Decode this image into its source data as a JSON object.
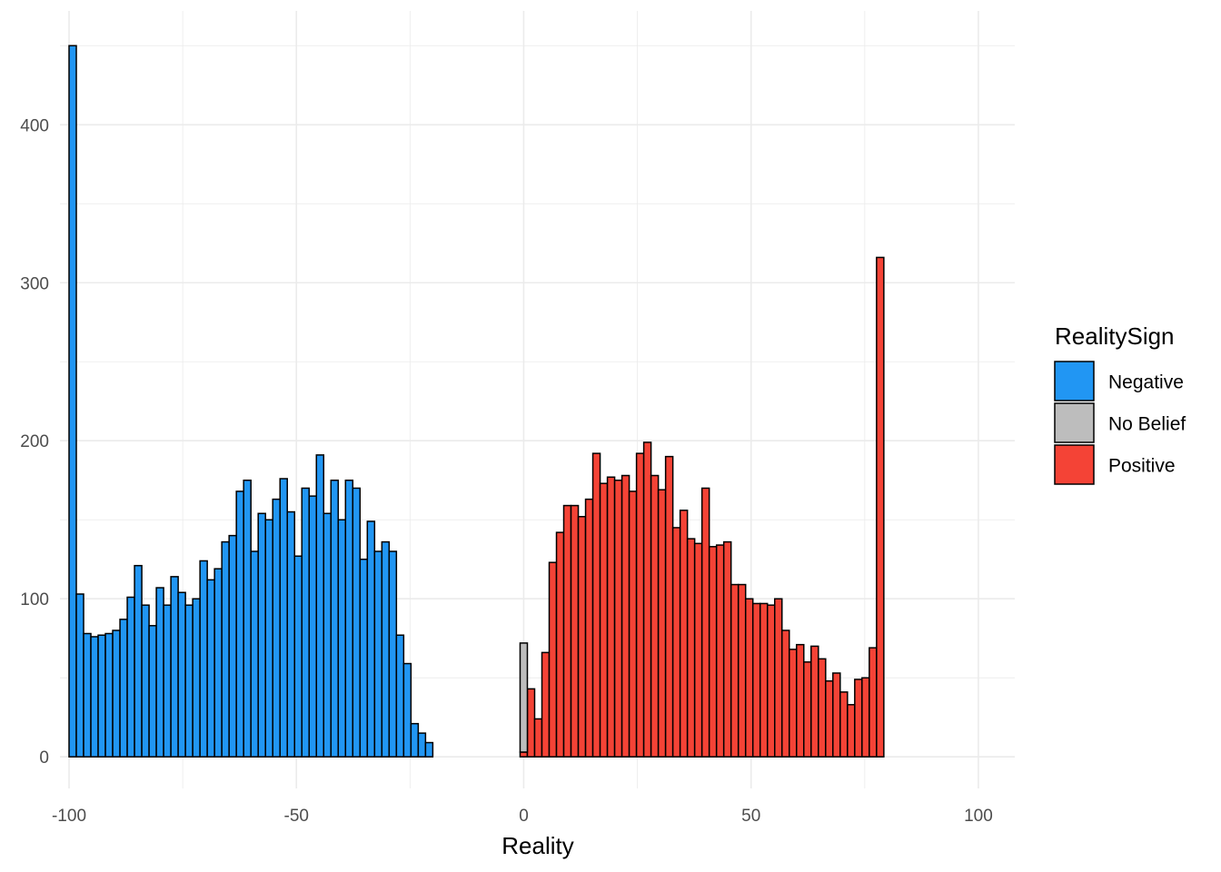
{
  "chart_data": {
    "type": "bar",
    "subtype": "stacked-histogram",
    "title": "",
    "xlabel": "Reality",
    "ylabel": "",
    "xlim": [
      -102,
      108
    ],
    "ylim": [
      -20,
      472
    ],
    "x_ticks": [
      -100,
      -50,
      0,
      50,
      100
    ],
    "x_tick_labels": [
      "-100",
      "-50",
      "0",
      "50",
      "100"
    ],
    "y_ticks": [
      0,
      100,
      200,
      300,
      400
    ],
    "y_tick_labels": [
      "0",
      "100",
      "200",
      "300",
      "400"
    ],
    "grid": true,
    "bin_width": 1.6,
    "legend": {
      "title": "RealitySign",
      "position": "right",
      "entries": [
        "Negative",
        "No Belief",
        "Positive"
      ]
    },
    "colors": {
      "Negative": "#2196F3",
      "No Belief": "#BDBDBD",
      "Positive": "#F44336",
      "outline": "#000000",
      "grid": "#EBEBEB"
    },
    "series": [
      {
        "name": "Negative",
        "x": [
          -99.2,
          -97.6,
          -96.0,
          -94.4,
          -92.8,
          -91.2,
          -89.6,
          -88.0,
          -86.4,
          -84.8,
          -83.2,
          -81.6,
          -80.0,
          -78.4,
          -76.8,
          -75.2,
          -73.6,
          -72.0,
          -70.4,
          -68.8,
          -67.2,
          -65.6,
          -64.0,
          -62.4,
          -60.8,
          -59.2,
          -57.6,
          -56.0,
          -54.4,
          -52.8,
          -51.2,
          -49.6,
          -48.0,
          -46.4,
          -44.8,
          -43.2,
          -41.6,
          -40.0,
          -38.4,
          -36.8,
          -35.2,
          -33.6,
          -32.0,
          -30.4,
          -28.8,
          -27.2,
          -25.6,
          -24.0,
          -22.4,
          -20.8,
          -19.2,
          -17.6,
          -16.0,
          -14.4,
          -12.8,
          -11.2,
          -9.6,
          -8.0,
          -6.4,
          -4.8,
          -3.2,
          -1.6,
          0.0
        ],
        "values": [
          450,
          103,
          78,
          76,
          77,
          78,
          80,
          87,
          101,
          121,
          96,
          83,
          107,
          96,
          114,
          104,
          96,
          100,
          124,
          112,
          119,
          136,
          140,
          168,
          175,
          130,
          154,
          150,
          163,
          176,
          155,
          127,
          170,
          165,
          191,
          154,
          175,
          150,
          175,
          170,
          125,
          149,
          130,
          136,
          130,
          77,
          59,
          21,
          15,
          9,
          0,
          0,
          0,
          0,
          0,
          0,
          0,
          0,
          0,
          0,
          0,
          0,
          0
        ]
      },
      {
        "name": "No Belief",
        "x": [
          0.0
        ],
        "values": [
          69
        ]
      },
      {
        "name": "Positive",
        "x": [
          0.0,
          1.6,
          3.2,
          4.8,
          6.4,
          8.0,
          9.6,
          11.2,
          12.8,
          14.4,
          16.0,
          17.6,
          19.2,
          20.8,
          22.4,
          24.0,
          25.6,
          27.2,
          28.8,
          30.4,
          32.0,
          33.6,
          35.2,
          36.8,
          38.4,
          40.0,
          41.6,
          43.2,
          44.8,
          46.4,
          48.0,
          49.6,
          51.2,
          52.8,
          54.4,
          56.0,
          57.6,
          59.2,
          60.8,
          62.4,
          64.0,
          65.6,
          67.2,
          68.8,
          70.4,
          72.0,
          73.6,
          75.2,
          76.8,
          78.4,
          80.0,
          81.6,
          83.2,
          84.8,
          86.4,
          88.0,
          89.6,
          91.2,
          92.8,
          94.4,
          96.0,
          97.6,
          99.2
        ],
        "values": [
          3,
          43,
          24,
          66,
          123,
          142,
          159,
          159,
          152,
          163,
          192,
          173,
          177,
          175,
          178,
          168,
          192,
          199,
          178,
          169,
          190,
          145,
          156,
          138,
          135,
          170,
          133,
          134,
          136,
          109,
          109,
          100,
          97,
          97,
          96,
          100,
          80,
          68,
          71,
          60,
          70,
          62,
          48,
          53,
          41,
          33,
          49,
          50,
          69,
          316,
          0,
          0,
          0,
          0,
          0,
          0,
          0,
          0,
          0,
          0,
          0,
          0,
          0
        ]
      }
    ]
  }
}
